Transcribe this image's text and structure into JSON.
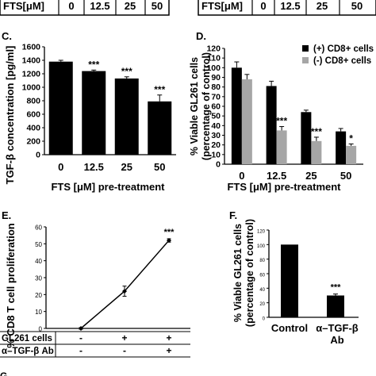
{
  "top_strip": {
    "left": {
      "header": "FTS[μM]",
      "cells": [
        "0",
        "0",
        "12.5",
        "25",
        "50"
      ]
    },
    "right": {
      "header": "FTS[μM]",
      "cells": [
        "0",
        "0",
        "12.5",
        "25",
        "50"
      ]
    }
  },
  "chart_data": [
    {
      "panel": "C.",
      "type": "bar",
      "ylabel": "TGF-β concentration [pg/ml]",
      "xlabel": "FTS [μM] pre-treatment",
      "categories": [
        "0",
        "12.5",
        "25",
        "50"
      ],
      "values": [
        1380,
        1240,
        1130,
        790
      ],
      "errors": [
        20,
        15,
        25,
        95
      ],
      "significance": [
        "",
        "***",
        "***",
        "***"
      ],
      "ylim": [
        0,
        1600
      ],
      "yticks": [
        0,
        200,
        400,
        600,
        800,
        1000,
        1200,
        1400,
        1600
      ],
      "bar_color": "#000000"
    },
    {
      "panel": "D.",
      "type": "bar",
      "ylabel": "% Viable GL261 cells (percentage of control)",
      "xlabel": "FTS [μM] pre-treatment",
      "categories": [
        "0",
        "12.5",
        "25",
        "50"
      ],
      "series": [
        {
          "name": "(+) CD8+ cells",
          "values": [
            100,
            81,
            54,
            34
          ],
          "errors": [
            6,
            5,
            2,
            3
          ],
          "color": "#000000"
        },
        {
          "name": "(-) CD8+ cells",
          "values": [
            88,
            35,
            24,
            19
          ],
          "errors": [
            5,
            4,
            4,
            2
          ],
          "color": "#a6a6a6"
        }
      ],
      "significance": [
        "",
        "***",
        "***",
        "*"
      ],
      "ylim": [
        0,
        120
      ],
      "yticks": [
        0,
        10,
        20,
        30,
        40,
        50,
        60,
        70,
        80,
        90,
        100,
        110,
        120
      ],
      "legend": "top-right"
    },
    {
      "panel": "E.",
      "type": "line",
      "ylabel": "% CD8 T cell proliferation",
      "x": [
        1,
        2,
        3
      ],
      "values": [
        0,
        22,
        52
      ],
      "errors": [
        0.5,
        3,
        1
      ],
      "significance": [
        "",
        "",
        "***"
      ],
      "ylim": [
        0,
        60
      ],
      "yticks": [
        0,
        10,
        20,
        30,
        40,
        50,
        60
      ],
      "table": {
        "rows": [
          {
            "label": "GL261 cells",
            "cells": [
              "-",
              "+",
              "+"
            ]
          },
          {
            "label": "α–TGF-β Ab",
            "cells": [
              "-",
              "-",
              "+"
            ]
          }
        ]
      }
    },
    {
      "panel": "F.",
      "type": "bar",
      "ylabel": "% Viable GL261 cells (percentage of control)",
      "categories": [
        "Control",
        "α–TGF-β Ab"
      ],
      "values": [
        100,
        30
      ],
      "errors": [
        0,
        2
      ],
      "significance": [
        "",
        "***"
      ],
      "ylim": [
        0,
        120
      ],
      "yticks": [
        0,
        20,
        40,
        60,
        80,
        100,
        120
      ],
      "bar_color": "#000000"
    }
  ],
  "bottom_fragment": "G"
}
